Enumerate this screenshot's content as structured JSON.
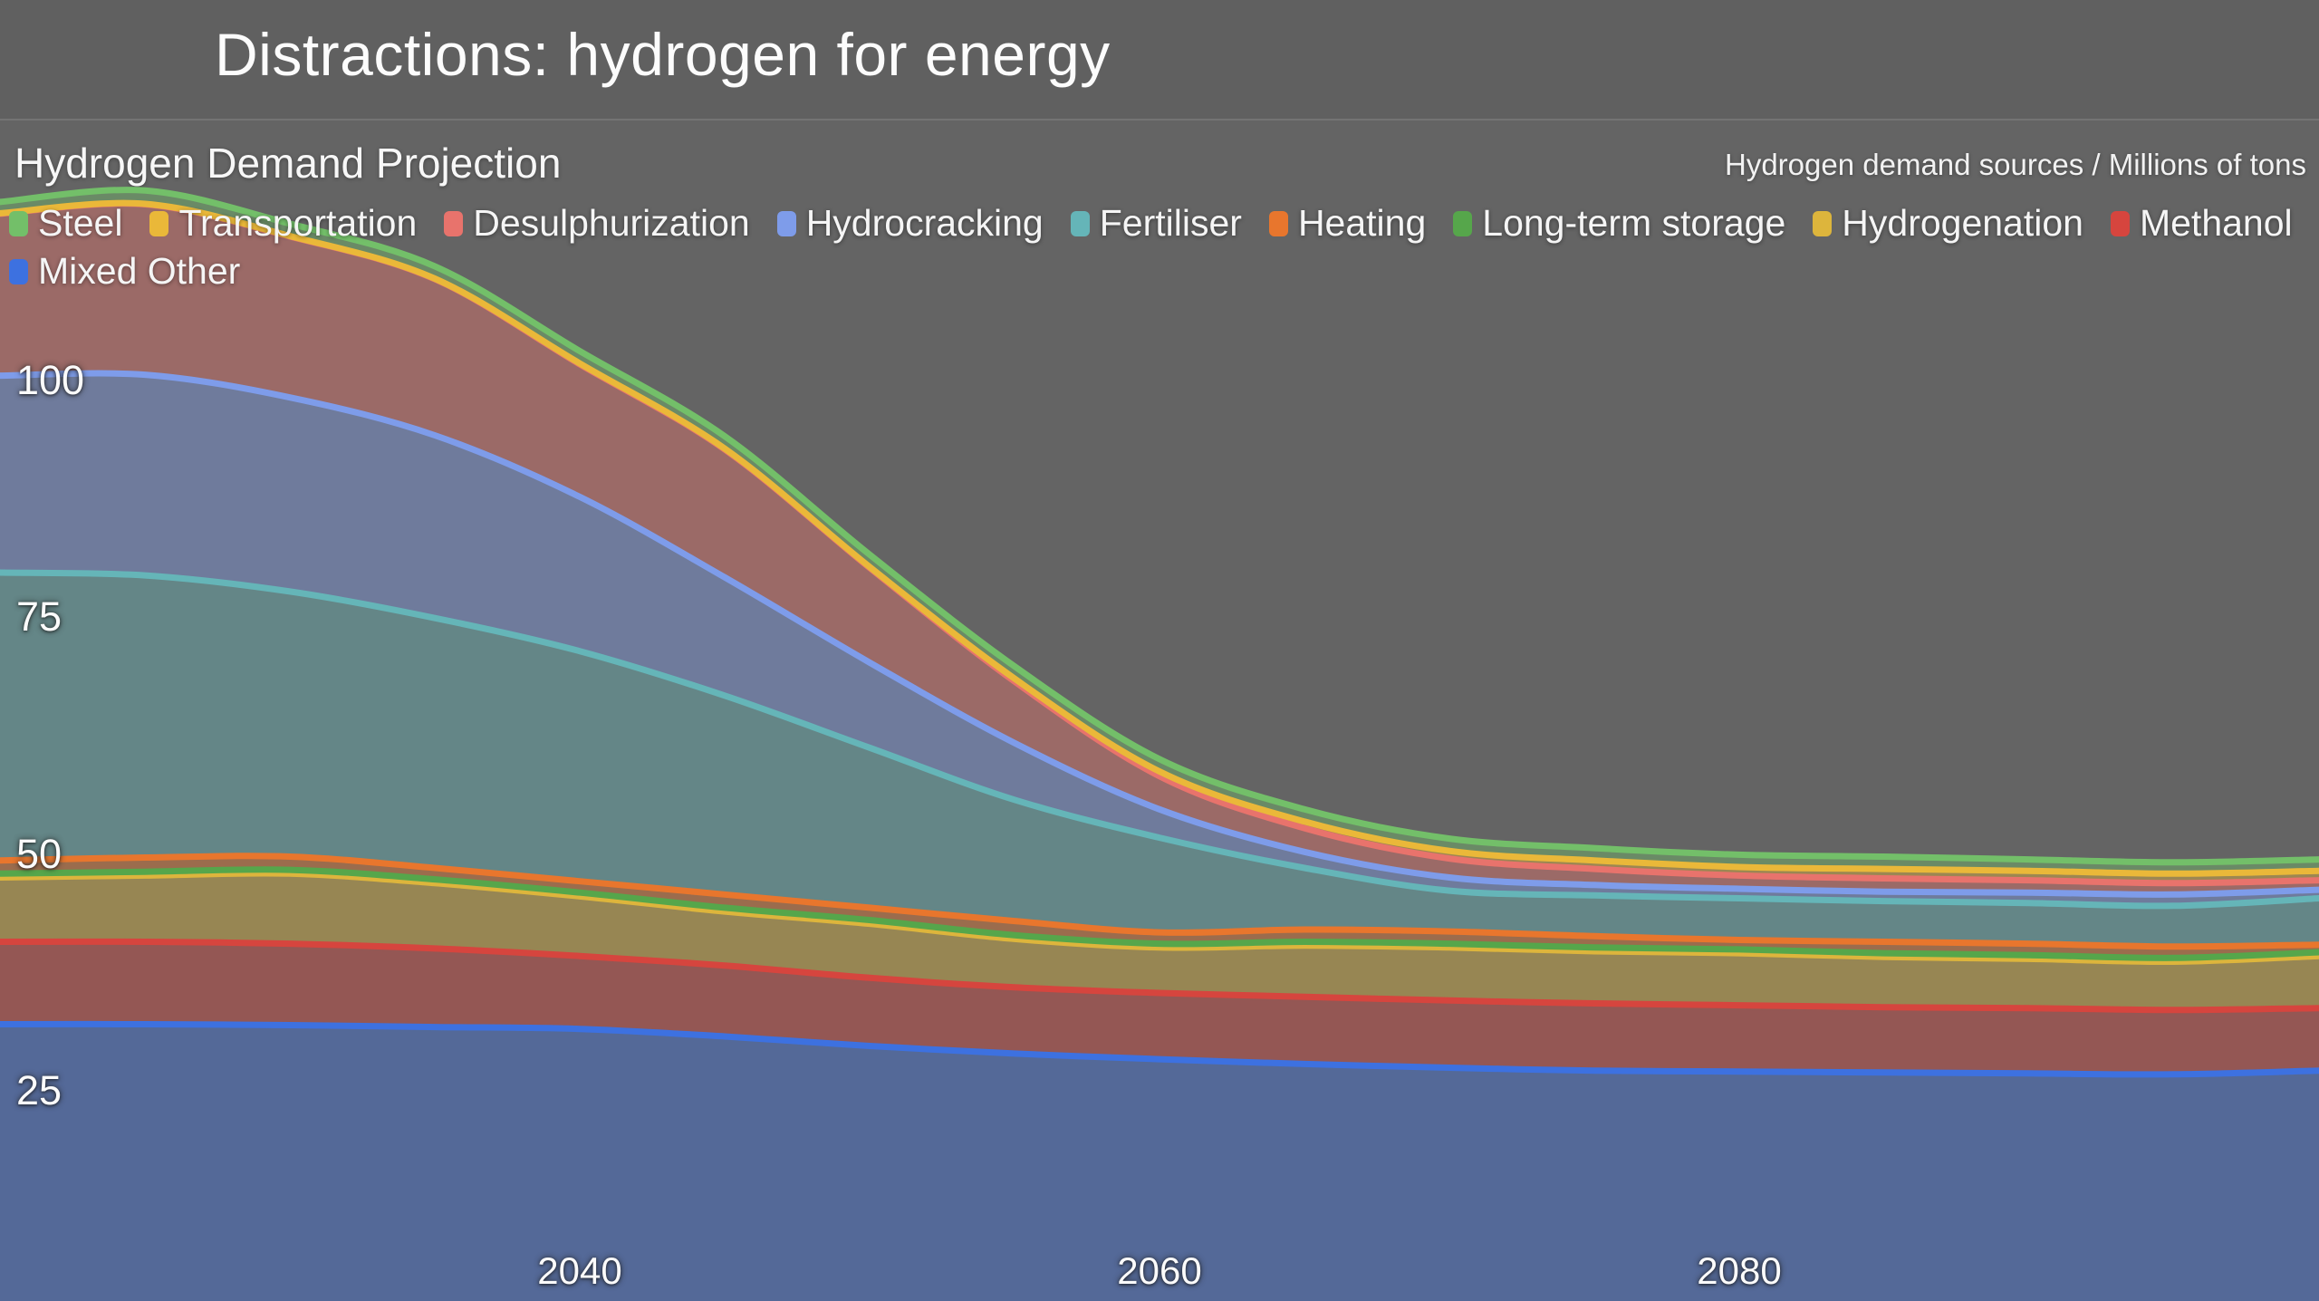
{
  "slide": {
    "title": "Distractions: hydrogen for energy"
  },
  "panel": {
    "title": "Hydrogen Demand Projection",
    "subtitle": "Hydrogen demand sources / Millions of tons"
  },
  "colors": {
    "page_background": "#646464",
    "header_background": "#606060",
    "divider": "#747474",
    "text": "#f5f5f5"
  },
  "chart_data": {
    "type": "area",
    "stacked": true,
    "title": "Hydrogen Demand Projection",
    "xlabel": "",
    "ylabel": "Millions of tons",
    "grid": false,
    "legend_position": "top-left",
    "x_range": [
      2020,
      2100
    ],
    "ylim_visible": [
      3,
      128
    ],
    "x_ticks": [
      2040,
      2060,
      2080
    ],
    "y_ticks": [
      100,
      75,
      50,
      25
    ],
    "x": [
      2020,
      2025,
      2030,
      2035,
      2040,
      2045,
      2050,
      2055,
      2060,
      2065,
      2070,
      2075,
      2080,
      2085,
      2090,
      2095,
      2100
    ],
    "note": "series listed in legend order; stacking order is bottom-to-top reverse of this list",
    "series": [
      {
        "name": "Steel",
        "color": "#73BF69",
        "values": [
          1.2,
          1.4,
          1.3,
          1.3,
          1.3,
          1.3,
          1.3,
          1.3,
          1.3,
          1.3,
          1.3,
          1.3,
          1.3,
          1.3,
          1.2,
          1.2,
          1.2
        ]
      },
      {
        "name": "Transportation",
        "color": "#EAB839",
        "values": [
          0.05,
          0.05,
          0.05,
          0.05,
          0.1,
          0.1,
          0.1,
          0.3,
          0.5,
          0.7,
          0.8,
          0.9,
          0.9,
          1.0,
          1.0,
          1.0,
          1.0
        ]
      },
      {
        "name": "Desulphurization",
        "color": "#E8736C",
        "values": [
          17.1,
          18.0,
          17.0,
          16.5,
          14.0,
          13.5,
          10.0,
          6.5,
          3.5,
          2.5,
          2.0,
          1.7,
          1.4,
          1.4,
          1.3,
          1.2,
          1.0
        ]
      },
      {
        "name": "Hydrocracking",
        "color": "#7E9CEA",
        "values": [
          20.8,
          21.2,
          20.5,
          19.3,
          16.3,
          12.5,
          9.0,
          6.0,
          3.0,
          1.7,
          1.4,
          1.1,
          1.0,
          1.0,
          1.1,
          1.2,
          0.9
        ]
      },
      {
        "name": "Fertiliser",
        "color": "#65B5B8",
        "values": [
          30.4,
          29.8,
          28.0,
          26.4,
          24.3,
          21.0,
          16.9,
          12.8,
          10.0,
          6.5,
          4.3,
          4.3,
          4.4,
          4.3,
          4.3,
          4.3,
          4.9
        ]
      },
      {
        "name": "Heating",
        "color": "#E8762D",
        "values": [
          1.4,
          1.5,
          1.4,
          1.2,
          1.2,
          1.4,
          1.3,
          1.5,
          1.2,
          1.3,
          1.3,
          1.2,
          1.0,
          1.2,
          1.2,
          1.2,
          0.8
        ]
      },
      {
        "name": "Long-term storage",
        "color": "#56A64B",
        "values": [
          0.4,
          0.4,
          0.4,
          0.4,
          0.4,
          0.4,
          0.4,
          0.4,
          0.4,
          0.4,
          0.4,
          0.4,
          0.4,
          0.4,
          0.4,
          0.4,
          0.4
        ]
      },
      {
        "name": "Hydrogenation",
        "color": "#DDB53C",
        "values": [
          6.8,
          7.0,
          7.4,
          6.9,
          6.3,
          5.7,
          5.7,
          5.1,
          4.8,
          5.4,
          5.6,
          5.5,
          5.5,
          5.3,
          5.2,
          5.1,
          5.5
        ]
      },
      {
        "name": "Methanol",
        "color": "#D6453E",
        "values": [
          8.7,
          8.7,
          8.6,
          8.3,
          7.7,
          7.5,
          7.2,
          7.0,
          7.0,
          7.1,
          7.1,
          7.1,
          7.0,
          6.9,
          6.9,
          6.8,
          6.6
        ]
      },
      {
        "name": "Mixed Other",
        "color": "#3D71E0",
        "values": [
          32.3,
          32.3,
          32.2,
          32.0,
          31.8,
          31.0,
          30.0,
          29.2,
          28.6,
          28.1,
          27.7,
          27.4,
          27.3,
          27.2,
          27.1,
          27.0,
          27.4
        ]
      }
    ],
    "style": {
      "fill_opacity": 0.42,
      "line_width": 7
    }
  }
}
